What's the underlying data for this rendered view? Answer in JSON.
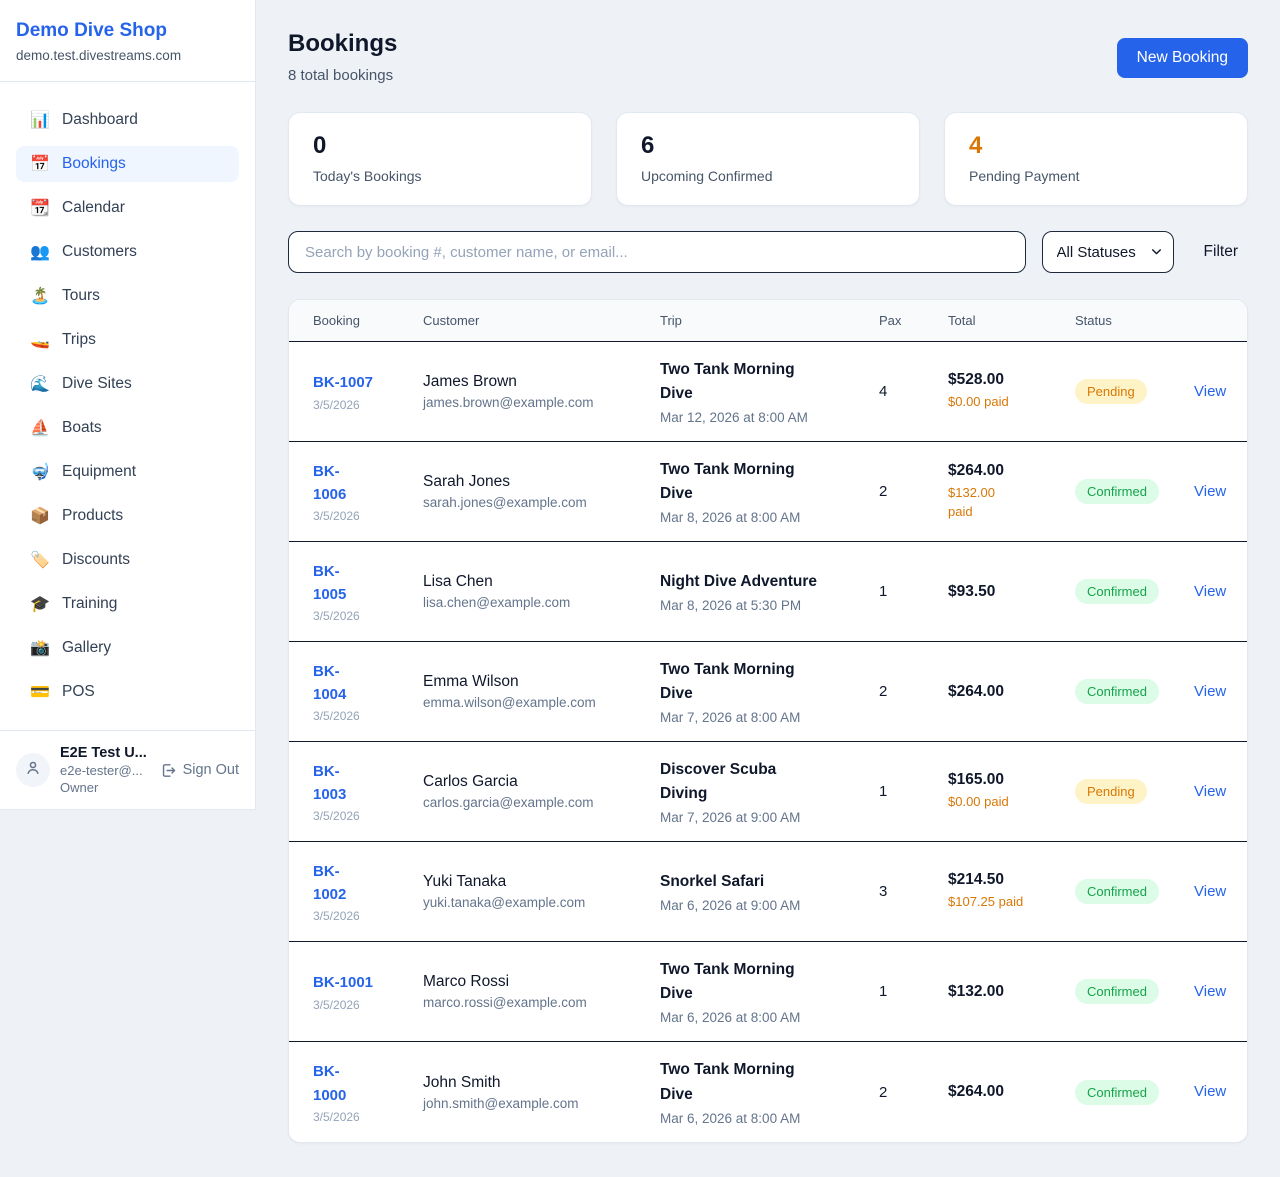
{
  "sidebar": {
    "shop_name": "Demo Dive Shop",
    "shop_domain": "demo.test.divestreams.com",
    "items": [
      {
        "slug": "dashboard",
        "icon": "📊",
        "icon_name": "bar-chart-icon",
        "label": "Dashboard",
        "active": false
      },
      {
        "slug": "bookings",
        "icon": "📅",
        "icon_name": "calendar-date-icon",
        "label": "Bookings",
        "active": true
      },
      {
        "slug": "calendar",
        "icon": "📆",
        "icon_name": "tear-off-calendar-icon",
        "label": "Calendar",
        "active": false
      },
      {
        "slug": "customers",
        "icon": "👥",
        "icon_name": "people-icon",
        "label": "Customers",
        "active": false
      },
      {
        "slug": "tours",
        "icon": "🏝️",
        "icon_name": "island-icon",
        "label": "Tours",
        "active": false
      },
      {
        "slug": "trips",
        "icon": "🚤",
        "icon_name": "speedboat-icon",
        "label": "Trips",
        "active": false
      },
      {
        "slug": "dive-sites",
        "icon": "🌊",
        "icon_name": "wave-icon",
        "label": "Dive Sites",
        "active": false
      },
      {
        "slug": "boats",
        "icon": "⛵",
        "icon_name": "sailboat-icon",
        "label": "Boats",
        "active": false
      },
      {
        "slug": "equipment",
        "icon": "🤿",
        "icon_name": "diving-mask-icon",
        "label": "Equipment",
        "active": false
      },
      {
        "slug": "products",
        "icon": "📦",
        "icon_name": "package-icon",
        "label": "Products",
        "active": false
      },
      {
        "slug": "discounts",
        "icon": "🏷️",
        "icon_name": "tag-icon",
        "label": "Discounts",
        "active": false
      },
      {
        "slug": "training",
        "icon": "🎓",
        "icon_name": "graduation-cap-icon",
        "label": "Training",
        "active": false
      },
      {
        "slug": "gallery",
        "icon": "📸",
        "icon_name": "camera-icon",
        "label": "Gallery",
        "active": false
      },
      {
        "slug": "pos",
        "icon": "💳",
        "icon_name": "credit-card-icon",
        "label": "POS",
        "active": false
      }
    ],
    "user": {
      "name": "E2E Test U...",
      "email": "e2e-tester@...",
      "role": "Owner",
      "sign_out_label": "Sign Out"
    }
  },
  "header": {
    "title": "Bookings",
    "subtitle": "8 total bookings",
    "new_booking_label": "New Booking"
  },
  "stats": [
    {
      "slug": "todays-bookings",
      "value": "0",
      "label": "Today's Bookings",
      "value_color": "#0f172a"
    },
    {
      "slug": "upcoming-confirmed",
      "value": "6",
      "label": "Upcoming Confirmed",
      "value_color": "#0f172a"
    },
    {
      "slug": "pending-payment",
      "value": "4",
      "label": "Pending Payment",
      "value_color": "#d97706"
    }
  ],
  "filters": {
    "search_placeholder": "Search by booking #, customer name, or email...",
    "status_selected": "All Statuses",
    "filter_label": "Filter"
  },
  "table": {
    "columns": [
      "Booking",
      "Customer",
      "Trip",
      "Pax",
      "Total",
      "Status"
    ],
    "view_label": "View",
    "rows": [
      {
        "id": "BK-1007",
        "id_wrap": false,
        "date": "3/5/2026",
        "customer": "James Brown",
        "email": "james.brown@example.com",
        "trip": "Two Tank Morning Dive",
        "trip_wrap": true,
        "trip_datetime": "Mar 12, 2026 at 8:00 AM",
        "pax": "4",
        "total": "$528.00",
        "paid": "$0.00 paid",
        "paid_wrap": false,
        "status": "Pending"
      },
      {
        "id": "BK-1006",
        "id_wrap": true,
        "date": "3/5/2026",
        "customer": "Sarah Jones",
        "email": "sarah.jones@example.com",
        "trip": "Two Tank Morning Dive",
        "trip_wrap": true,
        "trip_datetime": "Mar 8, 2026 at 8:00 AM",
        "pax": "2",
        "total": "$264.00",
        "paid": "$132.00 paid",
        "paid_wrap": true,
        "status": "Confirmed"
      },
      {
        "id": "BK-1005",
        "id_wrap": true,
        "date": "3/5/2026",
        "customer": "Lisa Chen",
        "email": "lisa.chen@example.com",
        "trip": "Night Dive Adventure",
        "trip_wrap": false,
        "trip_datetime": "Mar 8, 2026 at 5:30 PM",
        "pax": "1",
        "total": "$93.50",
        "paid": null,
        "paid_wrap": false,
        "status": "Confirmed"
      },
      {
        "id": "BK-1004",
        "id_wrap": true,
        "date": "3/5/2026",
        "customer": "Emma Wilson",
        "email": "emma.wilson@example.com",
        "trip": "Two Tank Morning Dive",
        "trip_wrap": true,
        "trip_datetime": "Mar 7, 2026 at 8:00 AM",
        "pax": "2",
        "total": "$264.00",
        "paid": null,
        "paid_wrap": false,
        "status": "Confirmed"
      },
      {
        "id": "BK-1003",
        "id_wrap": true,
        "date": "3/5/2026",
        "customer": "Carlos Garcia",
        "email": "carlos.garcia@example.com",
        "trip": "Discover Scuba Diving",
        "trip_wrap": true,
        "trip_datetime": "Mar 7, 2026 at 9:00 AM",
        "pax": "1",
        "total": "$165.00",
        "paid": "$0.00 paid",
        "paid_wrap": false,
        "status": "Pending"
      },
      {
        "id": "BK-1002",
        "id_wrap": true,
        "date": "3/5/2026",
        "customer": "Yuki Tanaka",
        "email": "yuki.tanaka@example.com",
        "trip": "Snorkel Safari",
        "trip_wrap": false,
        "trip_datetime": "Mar 6, 2026 at 9:00 AM",
        "pax": "3",
        "total": "$214.50",
        "paid": "$107.25 paid",
        "paid_wrap": false,
        "status": "Confirmed"
      },
      {
        "id": "BK-1001",
        "id_wrap": false,
        "date": "3/5/2026",
        "customer": "Marco Rossi",
        "email": "marco.rossi@example.com",
        "trip": "Two Tank Morning Dive",
        "trip_wrap": true,
        "trip_datetime": "Mar 6, 2026 at 8:00 AM",
        "pax": "1",
        "total": "$132.00",
        "paid": null,
        "paid_wrap": false,
        "status": "Confirmed"
      },
      {
        "id": "BK-1000",
        "id_wrap": true,
        "date": "3/5/2026",
        "customer": "John Smith",
        "email": "john.smith@example.com",
        "trip": "Two Tank Morning Dive",
        "trip_wrap": true,
        "trip_datetime": "Mar 6, 2026 at 8:00 AM",
        "pax": "2",
        "total": "$264.00",
        "paid": null,
        "paid_wrap": false,
        "status": "Confirmed"
      }
    ]
  },
  "colors": {
    "accent_blue": "#2563eb",
    "pending_text": "#d97706",
    "pending_bg": "#fef3c7",
    "confirmed_text": "#16a34a",
    "confirmed_bg": "#dcfce7",
    "paid_amount": "#d97706"
  }
}
